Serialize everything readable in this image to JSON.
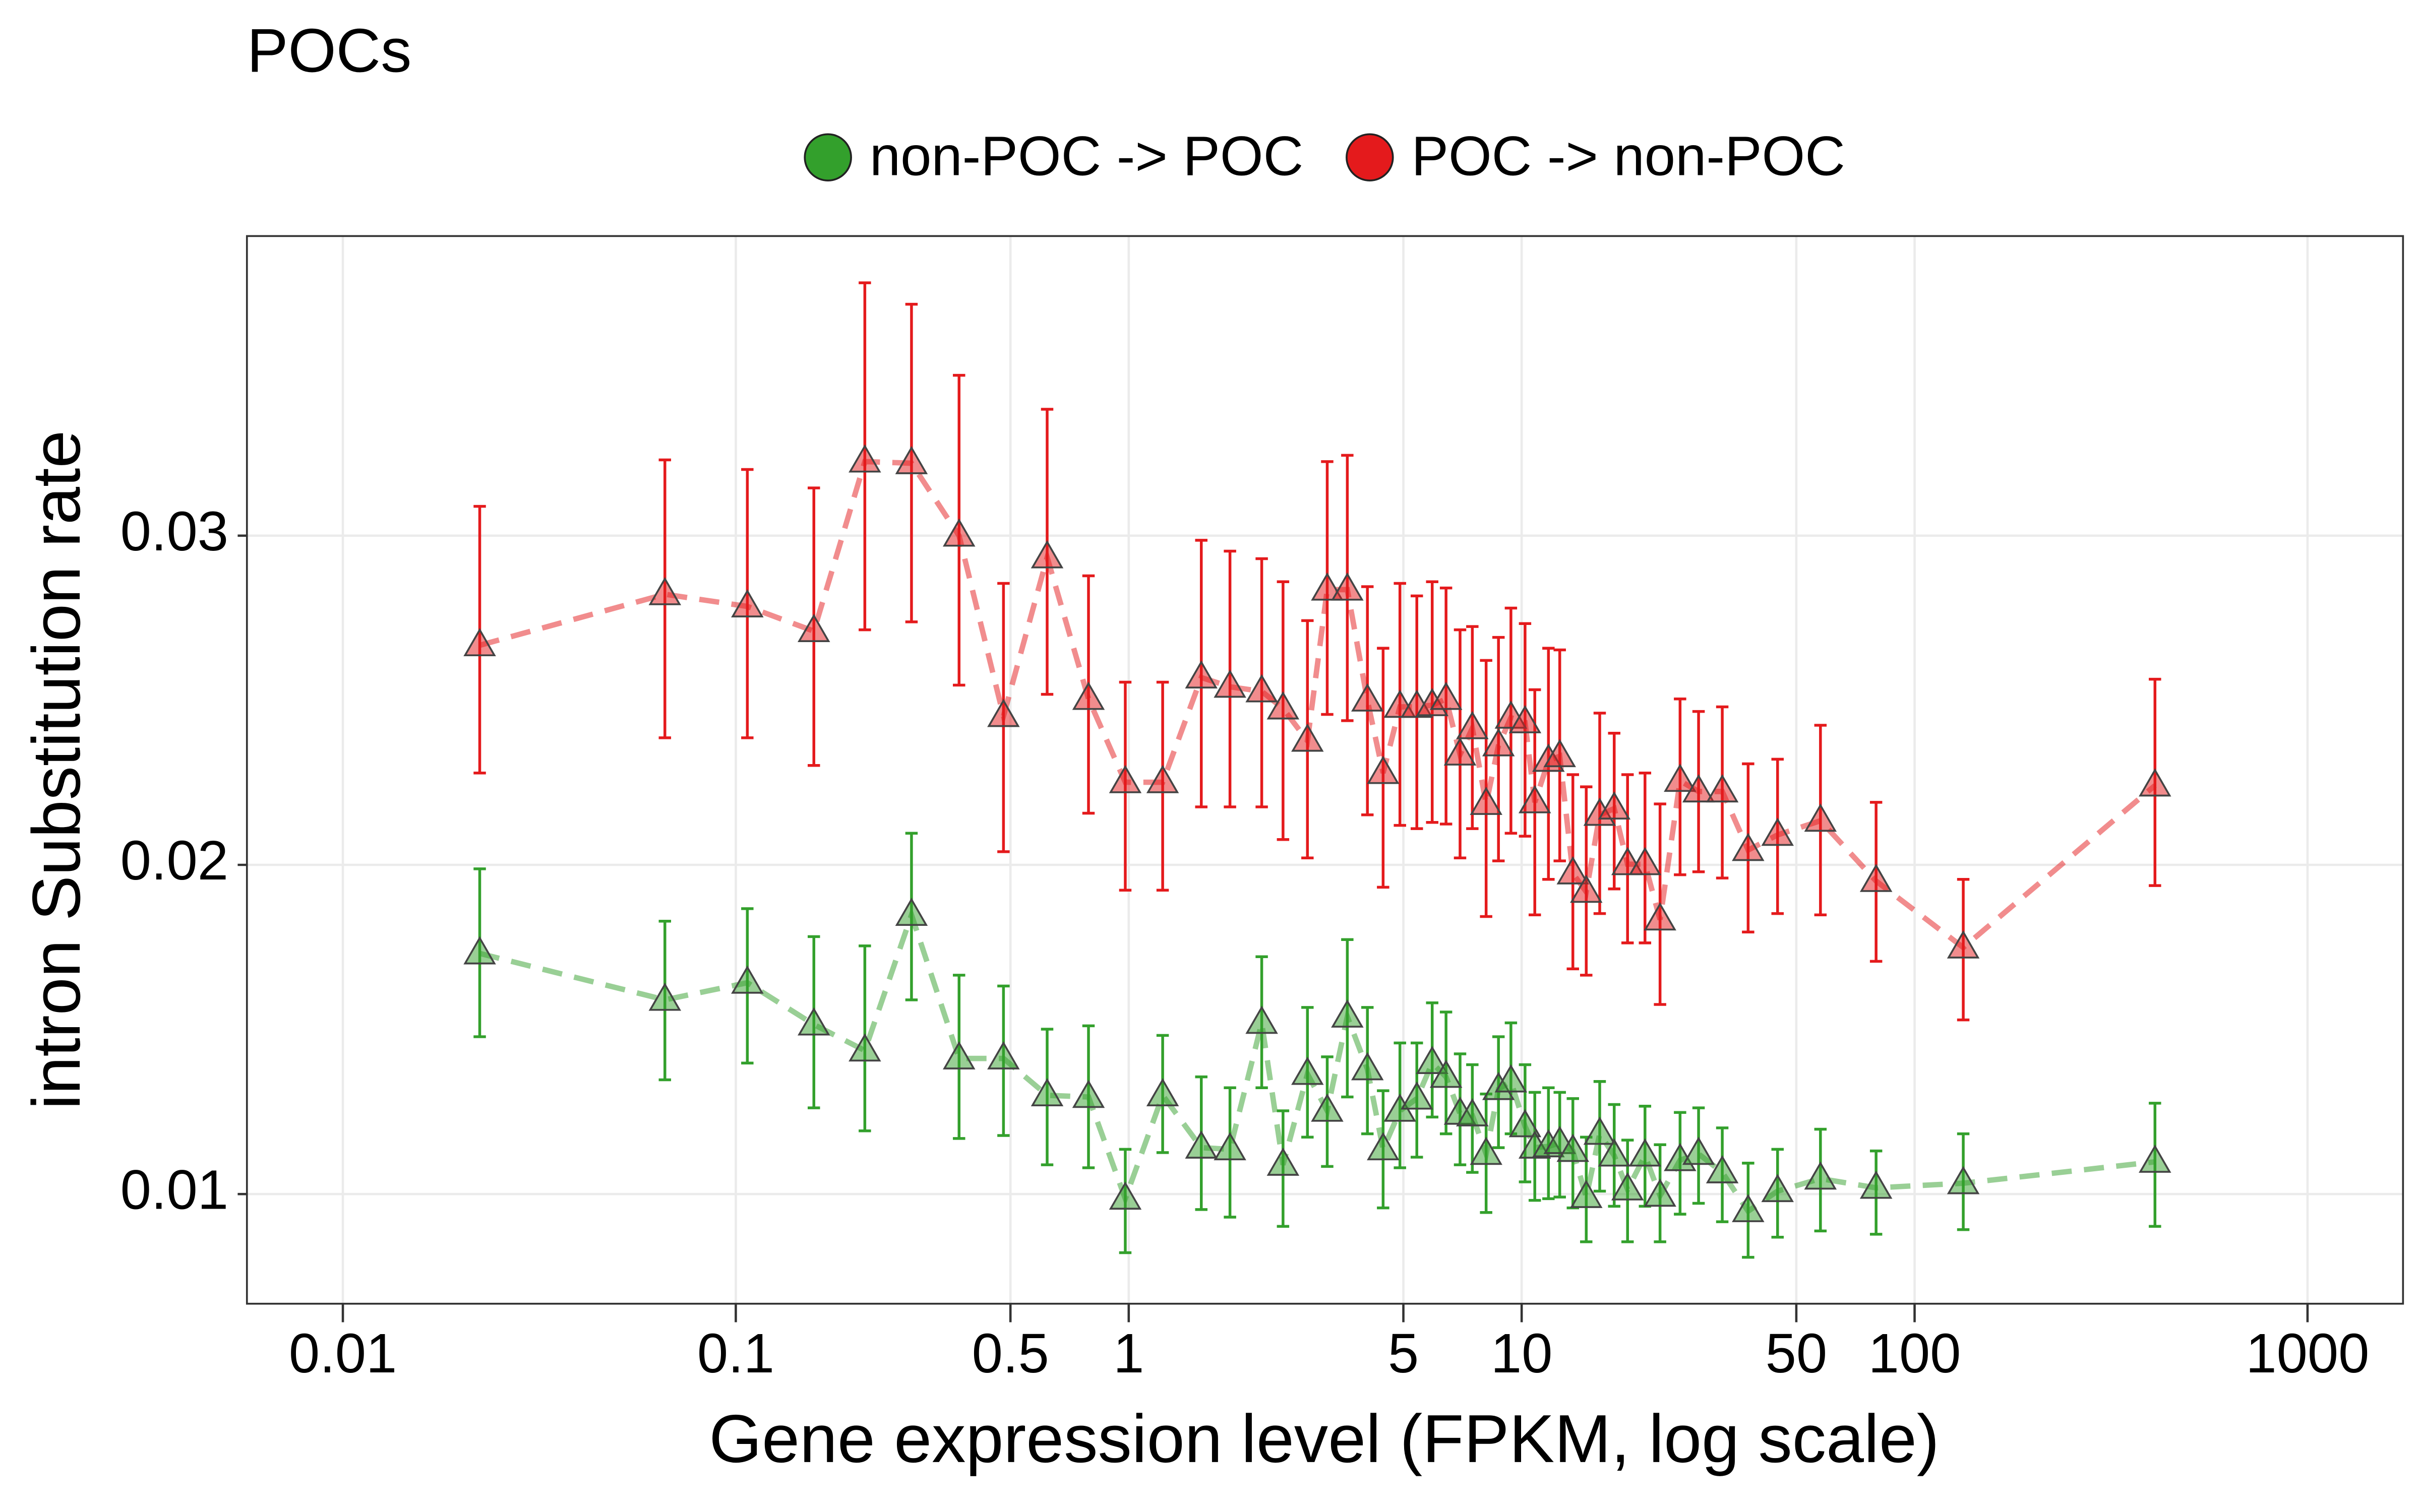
{
  "chart_data": {
    "type": "line",
    "title": "POCs",
    "x_label": "Gene expression level (FPKM, log scale)",
    "y_label": "intron Substitution rate",
    "log_x": true,
    "grid": true,
    "legend": "top",
    "xlim": [
      0.0057,
      1750
    ],
    "ylim": [
      0.00667,
      0.0391
    ],
    "xticks": [
      0.01,
      0.1,
      0.5,
      1,
      5,
      10,
      50,
      100,
      1000
    ],
    "yticks": [
      0.01,
      0.02,
      0.03
    ],
    "x": [
      0.0223,
      0.066,
      0.107,
      0.158,
      0.213,
      0.28,
      0.37,
      0.48,
      0.62,
      0.79,
      0.98,
      1.22,
      1.53,
      1.81,
      2.18,
      2.47,
      2.85,
      3.2,
      3.6,
      4.05,
      4.44,
      4.9,
      5.41,
      5.92,
      6.42,
      6.97,
      7.49,
      8.12,
      8.73,
      9.39,
      10.2,
      10.8,
      11.7,
      12.5,
      13.5,
      14.6,
      15.8,
      17.2,
      18.6,
      20.6,
      22.5,
      25.3,
      28.2,
      32.4,
      37.7,
      44.8,
      57.6,
      79.8,
      133,
      409
    ],
    "series": [
      {
        "name": "non-POC -> POC",
        "color": "#33a02c",
        "values": [
          0.01731,
          0.0159,
          0.01642,
          0.01515,
          0.01436,
          0.01848,
          0.01412,
          0.01412,
          0.013,
          0.01295,
          0.00986,
          0.013,
          0.01141,
          0.01136,
          0.0152,
          0.01089,
          0.01365,
          0.01253,
          0.01539,
          0.01379,
          0.01136,
          0.01253,
          0.0129,
          0.01398,
          0.01356,
          0.01244,
          0.01239,
          0.01122,
          0.01319,
          0.01342,
          0.01206,
          0.01141,
          0.01145,
          0.01155,
          0.01131,
          0.00991,
          0.01183,
          0.01117,
          0.01014,
          0.01117,
          0.00995,
          0.01103,
          0.01122,
          0.01066,
          0.00948,
          0.01009,
          0.01047,
          0.01019,
          0.01033,
          0.01098
        ],
        "upper": [
          0.01988,
          0.01829,
          0.01867,
          0.01782,
          0.01754,
          0.02096,
          0.01665,
          0.01632,
          0.01501,
          0.01511,
          0.01136,
          0.01482,
          0.01356,
          0.01323,
          0.01721,
          0.01253,
          0.01567,
          0.01417,
          0.01773,
          0.01567,
          0.01314,
          0.01459,
          0.01459,
          0.01581,
          0.01553,
          0.01426,
          0.01393,
          0.01304,
          0.01478,
          0.0152,
          0.01393,
          0.01309,
          0.01323,
          0.01309,
          0.0129,
          0.01173,
          0.01342,
          0.01272,
          0.01164,
          0.01267,
          0.0115,
          0.01248,
          0.01262,
          0.01201,
          0.01094,
          0.01136,
          0.01197,
          0.01131,
          0.01183,
          0.01276
        ],
        "lower": [
          0.01478,
          0.01347,
          0.01398,
          0.01262,
          0.01192,
          0.0159,
          0.01169,
          0.01178,
          0.01089,
          0.0108,
          0.00822,
          0.01126,
          0.00953,
          0.0093,
          0.01323,
          0.00902,
          0.01173,
          0.01084,
          0.01295,
          0.01183,
          0.00958,
          0.0108,
          0.01112,
          0.01234,
          0.01183,
          0.01089,
          0.01066,
          0.00944,
          0.01141,
          0.01183,
          0.01037,
          0.00981,
          0.00986,
          0.00991,
          0.00958,
          0.00855,
          0.01009,
          0.00963,
          0.00855,
          0.00963,
          0.00855,
          0.00939,
          0.00972,
          0.00916,
          0.00808,
          0.00869,
          0.00888,
          0.00878,
          0.00892,
          0.00902
        ]
      },
      {
        "name": "POC -> non-POC",
        "color": "#e41a1c",
        "values": [
          0.02667,
          0.02822,
          0.02785,
          0.0271,
          0.03225,
          0.0322,
          0.03,
          0.02452,
          0.02934,
          0.02504,
          0.02251,
          0.02251,
          0.02569,
          0.02541,
          0.02527,
          0.02475,
          0.02377,
          0.02836,
          0.02836,
          0.02499,
          0.02279,
          0.0248,
          0.0248,
          0.02485,
          0.02504,
          0.02335,
          0.02415,
          0.02185,
          0.02363,
          0.02447,
          0.02433,
          0.0219,
          0.02316,
          0.0233,
          0.01974,
          0.01918,
          0.02152,
          0.02171,
          0.02002,
          0.02002,
          0.01834,
          0.02255,
          0.02223,
          0.02223,
          0.02045,
          0.02091,
          0.02134,
          0.01951,
          0.01749,
          0.02241
        ],
        "upper": [
          0.03089,
          0.0323,
          0.03201,
          0.03145,
          0.03768,
          0.03703,
          0.03487,
          0.02855,
          0.03384,
          0.02878,
          0.02555,
          0.02555,
          0.02986,
          0.02953,
          0.0293,
          0.0286,
          0.02742,
          0.03225,
          0.03244,
          0.02845,
          0.02658,
          0.02855,
          0.02817,
          0.0286,
          0.02841,
          0.02714,
          0.02724,
          0.02621,
          0.02691,
          0.0278,
          0.02733,
          0.02532,
          0.02658,
          0.02653,
          0.02274,
          0.02237,
          0.02461,
          0.024,
          0.02274,
          0.02279,
          0.02185,
          0.02504,
          0.02466,
          0.0248,
          0.02307,
          0.02321,
          0.02424,
          0.0219,
          0.01956,
          0.02564
        ],
        "lower": [
          0.02279,
          0.02386,
          0.02386,
          0.02302,
          0.02714,
          0.02738,
          0.02546,
          0.0204,
          0.02518,
          0.02157,
          0.01923,
          0.01923,
          0.02176,
          0.02176,
          0.02176,
          0.02077,
          0.02021,
          0.02457,
          0.02438,
          0.02152,
          0.01932,
          0.0212,
          0.0211,
          0.02129,
          0.02124,
          0.02021,
          0.0211,
          0.01843,
          0.02012,
          0.02096,
          0.02087,
          0.01848,
          0.01956,
          0.02012,
          0.01684,
          0.01665,
          0.01852,
          0.01927,
          0.01763,
          0.01763,
          0.01576,
          0.0197,
          0.01979,
          0.0196,
          0.01796,
          0.01852,
          0.01848,
          0.01707,
          0.01529,
          0.01937
        ]
      }
    ]
  }
}
